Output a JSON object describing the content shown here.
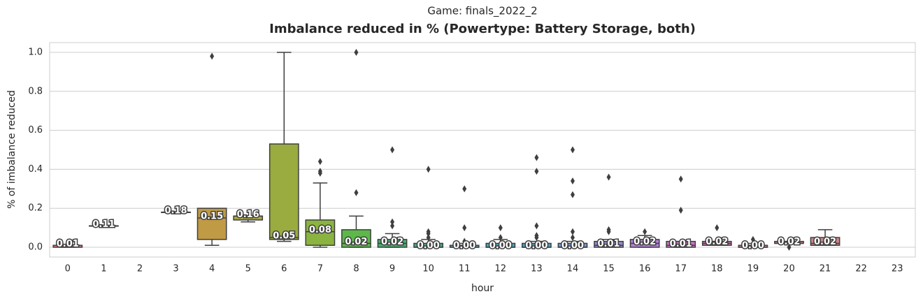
{
  "chart_data": {
    "type": "box",
    "suptitle": "Game: finals_2022_2",
    "title": "Imbalance reduced in % (Powertype: Battery Storage, both)",
    "xlabel": "hour",
    "ylabel": "% of imbalance reduced",
    "categories": [
      "0",
      "1",
      "2",
      "3",
      "4",
      "5",
      "6",
      "7",
      "8",
      "9",
      "10",
      "11",
      "12",
      "13",
      "14",
      "15",
      "16",
      "17",
      "18",
      "19",
      "20",
      "21",
      "22",
      "23"
    ],
    "colors": [
      "#e0788a",
      "#e07a58",
      "#d08845",
      "#c09544",
      "#c09a44",
      "#a9a544",
      "#9aab3f",
      "#8ab43f",
      "#5db84a",
      "#44b070",
      "#44ac95",
      "#44aaa9",
      "#45a8bb",
      "#47a3ce",
      "#6d9ad8",
      "#948cd8",
      "#b47fd8",
      "#d26fd3",
      "#d673ba",
      "#d8789f",
      "#db7a8e",
      "#d0858a",
      "#c88a88",
      "#c08c86"
    ],
    "boxes": [
      {
        "min": 0.0,
        "q1": 0.0,
        "median": 0.01,
        "q3": 0.01,
        "max": 0.01,
        "outliers": []
      },
      {
        "min": 0.11,
        "q1": 0.11,
        "median": 0.11,
        "q3": 0.11,
        "max": 0.11,
        "outliers": []
      },
      null,
      {
        "min": 0.18,
        "q1": 0.18,
        "median": 0.18,
        "q3": 0.18,
        "max": 0.18,
        "outliers": []
      },
      {
        "min": 0.01,
        "q1": 0.04,
        "median": 0.15,
        "q3": 0.2,
        "max": 0.2,
        "outliers": [
          0.98
        ]
      },
      {
        "min": 0.13,
        "q1": 0.14,
        "median": 0.16,
        "q3": 0.16,
        "max": 0.16,
        "outliers": []
      },
      {
        "min": 0.03,
        "q1": 0.04,
        "median": 0.05,
        "q3": 0.53,
        "max": 1.0,
        "outliers": []
      },
      {
        "min": 0.0,
        "q1": 0.01,
        "median": 0.08,
        "q3": 0.14,
        "max": 0.33,
        "outliers": [
          0.38,
          0.39,
          0.44
        ]
      },
      {
        "min": 0.0,
        "q1": 0.0,
        "median": 0.02,
        "q3": 0.09,
        "max": 0.16,
        "outliers": [
          0.28,
          1.0
        ]
      },
      {
        "min": 0.0,
        "q1": 0.0,
        "median": 0.02,
        "q3": 0.04,
        "max": 0.07,
        "outliers": [
          0.11,
          0.13,
          0.5
        ]
      },
      {
        "min": 0.0,
        "q1": 0.0,
        "median": 0.0,
        "q3": 0.02,
        "max": 0.04,
        "outliers": [
          0.05,
          0.07,
          0.08,
          0.4
        ]
      },
      {
        "min": 0.0,
        "q1": 0.0,
        "median": 0.0,
        "q3": 0.01,
        "max": 0.02,
        "outliers": [
          0.03,
          0.1,
          0.3
        ]
      },
      {
        "min": 0.0,
        "q1": 0.0,
        "median": 0.0,
        "q3": 0.02,
        "max": 0.04,
        "outliers": [
          0.05,
          0.1
        ]
      },
      {
        "min": 0.0,
        "q1": 0.0,
        "median": 0.0,
        "q3": 0.02,
        "max": 0.03,
        "outliers": [
          0.05,
          0.06,
          0.11,
          0.39,
          0.46
        ]
      },
      {
        "min": 0.0,
        "q1": 0.0,
        "median": 0.0,
        "q3": 0.02,
        "max": 0.03,
        "outliers": [
          0.05,
          0.08,
          0.27,
          0.34,
          0.5
        ]
      },
      {
        "min": 0.0,
        "q1": 0.0,
        "median": 0.01,
        "q3": 0.03,
        "max": 0.04,
        "outliers": [
          0.08,
          0.09,
          0.36
        ]
      },
      {
        "min": 0.0,
        "q1": 0.0,
        "median": 0.02,
        "q3": 0.04,
        "max": 0.06,
        "outliers": [
          0.08
        ]
      },
      {
        "min": 0.0,
        "q1": 0.0,
        "median": 0.01,
        "q3": 0.03,
        "max": 0.03,
        "outliers": [
          0.19,
          0.35
        ]
      },
      {
        "min": 0.01,
        "q1": 0.01,
        "median": 0.02,
        "q3": 0.03,
        "max": 0.03,
        "outliers": [
          0.1
        ]
      },
      {
        "min": 0.0,
        "q1": 0.0,
        "median": 0.0,
        "q3": 0.01,
        "max": 0.02,
        "outliers": [
          0.04
        ]
      },
      {
        "min": 0.02,
        "q1": 0.02,
        "median": 0.02,
        "q3": 0.03,
        "max": 0.03,
        "outliers": [
          0.0
        ]
      },
      {
        "min": 0.01,
        "q1": 0.01,
        "median": 0.02,
        "q3": 0.05,
        "max": 0.09,
        "outliers": []
      },
      null,
      null
    ],
    "value_labels": [
      "0.01",
      "0.11",
      null,
      "0.18",
      "0.15",
      "0.16",
      "0.05",
      "0.08",
      "0.02",
      "0.02",
      "0.00",
      "0.00",
      "0.00",
      "0.00",
      "0.00",
      "0.01",
      "0.02",
      "0.01",
      "0.02",
      "0.00",
      "0.02",
      "0.02",
      null,
      null
    ],
    "ylim": [
      -0.05,
      1.05
    ],
    "yticks": [
      {
        "value": 0,
        "label": "0.0"
      },
      {
        "value": 0.2,
        "label": "0.2"
      },
      {
        "value": 0.4,
        "label": "0.4"
      },
      {
        "value": 0.6,
        "label": "0.6"
      },
      {
        "value": 0.8,
        "label": "0.8"
      },
      {
        "value": 1,
        "label": "1.0"
      }
    ],
    "grid": true
  }
}
